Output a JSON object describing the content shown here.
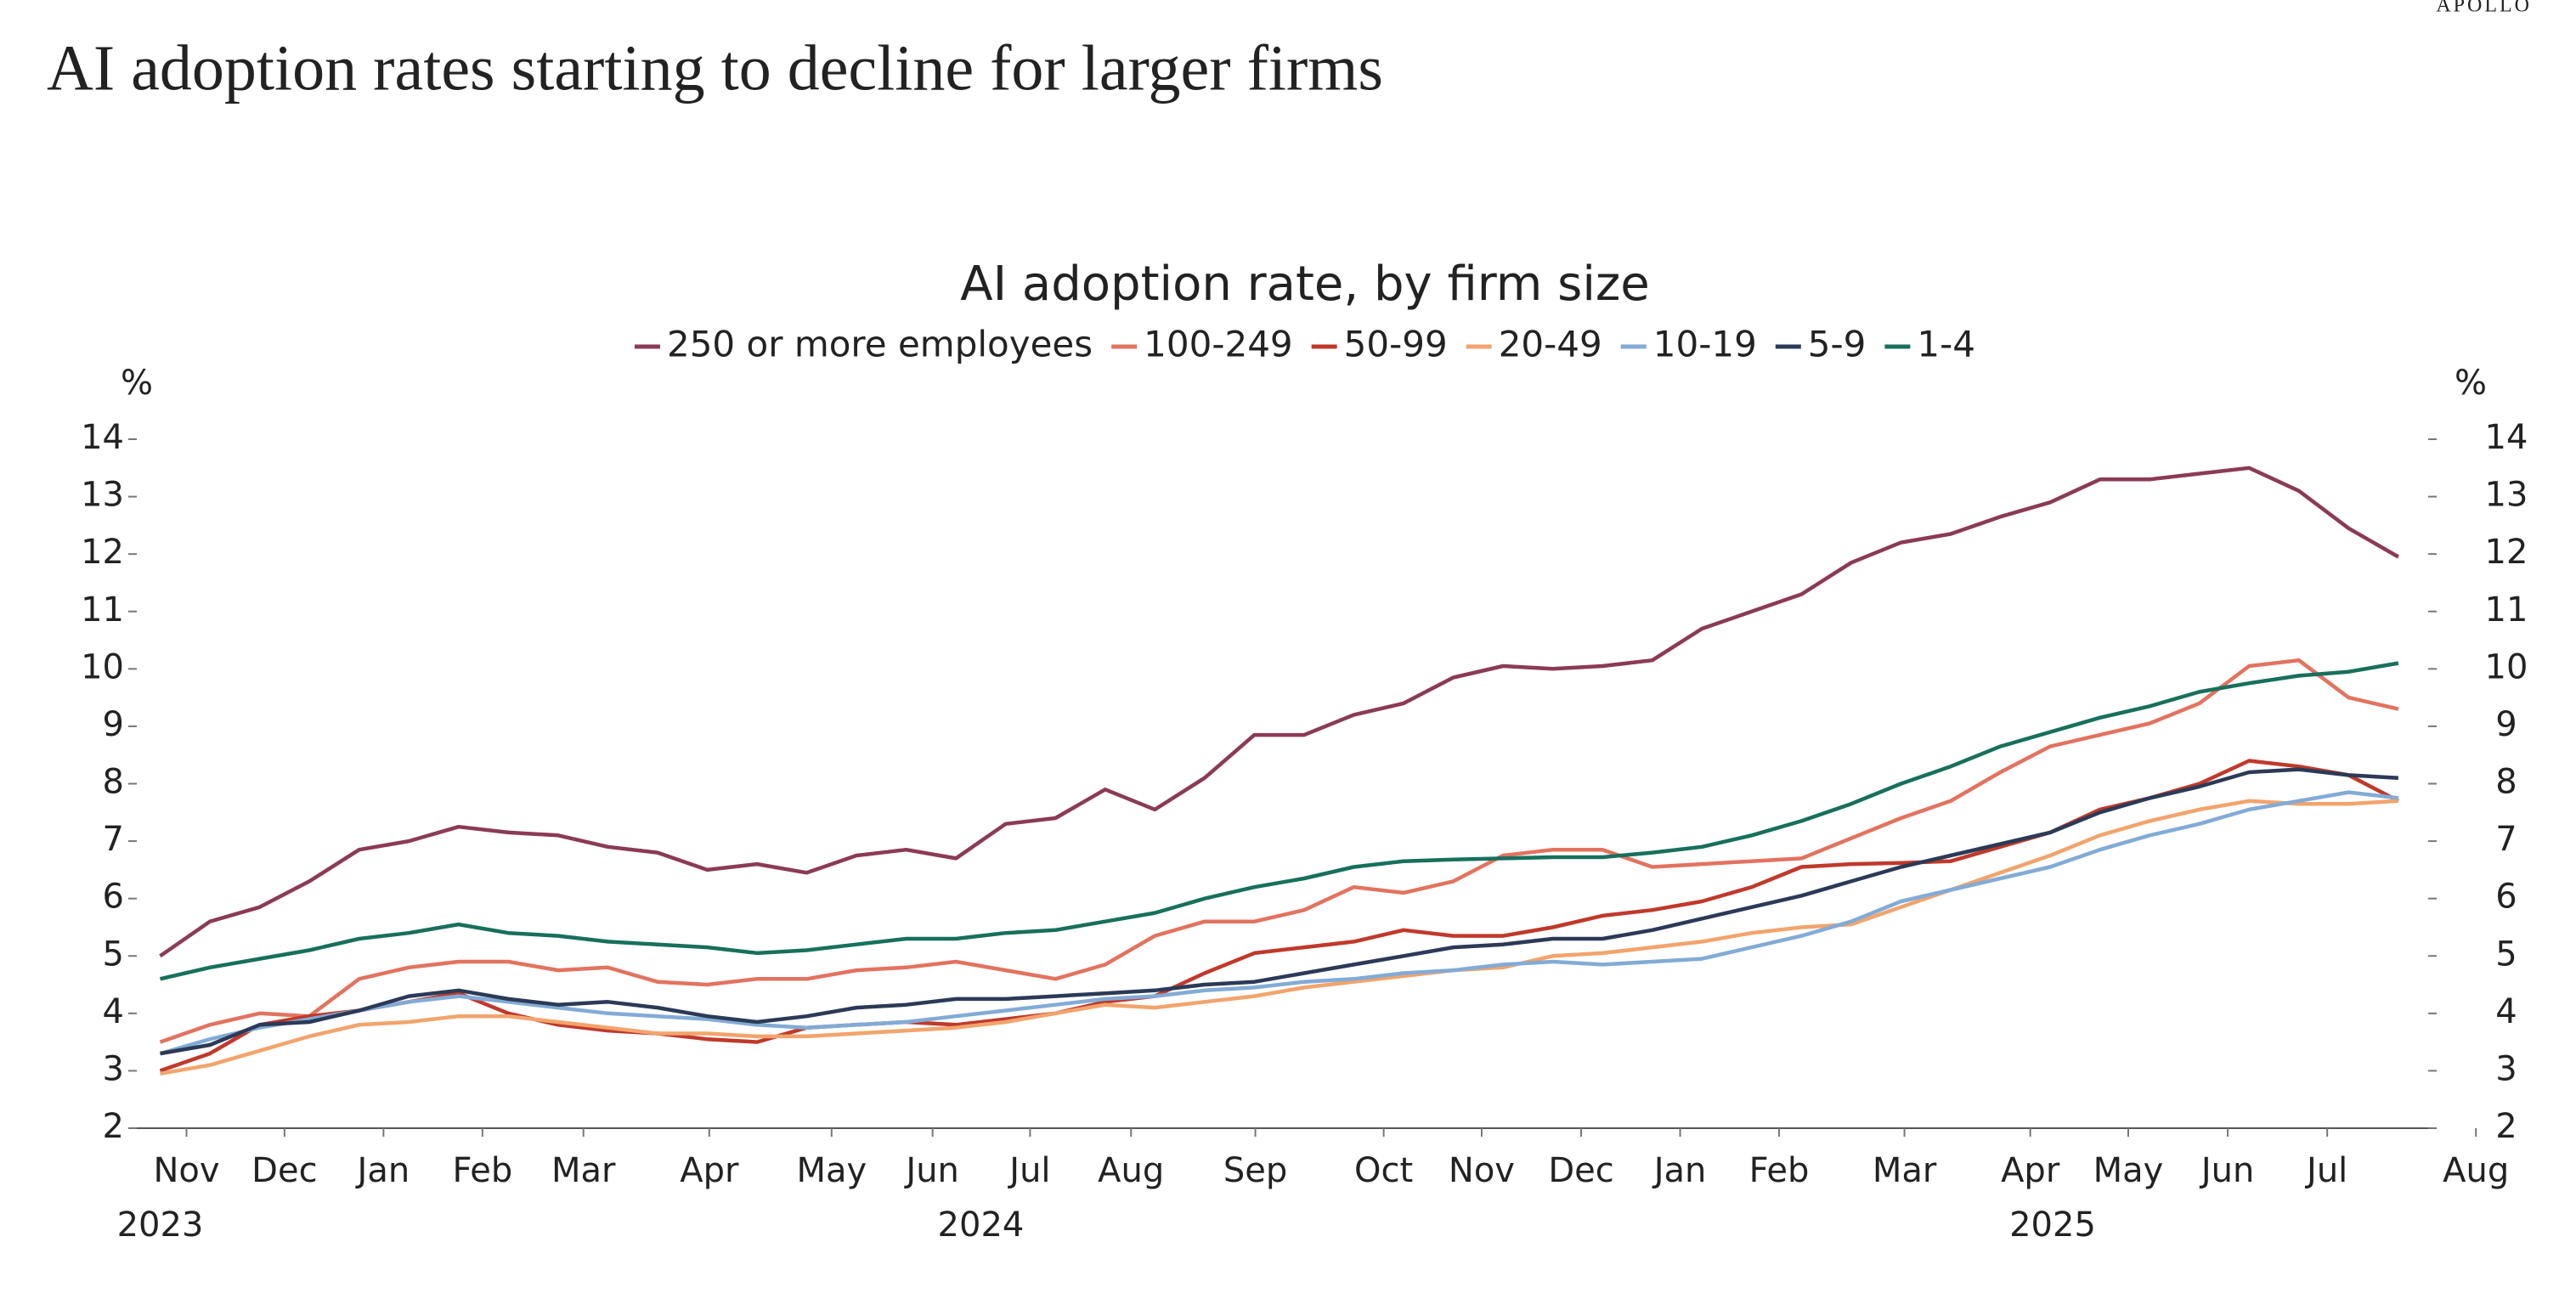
{
  "brand": "APOLLO",
  "headline": "AI adoption rates starting to decline for larger firms",
  "chart_data": {
    "type": "line",
    "title": "AI adoption rate, by firm size",
    "y_unit": "%",
    "y2_unit": "%",
    "ylim": [
      2,
      14
    ],
    "yticks": [
      2,
      3,
      4,
      5,
      6,
      7,
      8,
      9,
      10,
      11,
      12,
      13,
      14
    ],
    "y2lim": [
      2,
      14
    ],
    "y2ticks": [
      2,
      3,
      4,
      5,
      6,
      7,
      8,
      9,
      10,
      11,
      12,
      13,
      14
    ],
    "xlim": [
      -0.47,
      45.6
    ],
    "xticks": [
      {
        "value": 0.53,
        "label": "Nov"
      },
      {
        "value": 2.5,
        "label": "Dec"
      },
      {
        "value": 4.49,
        "label": "Jan"
      },
      {
        "value": 6.48,
        "label": "Feb"
      },
      {
        "value": 8.51,
        "label": "Mar"
      },
      {
        "value": 11.04,
        "label": "Apr"
      },
      {
        "value": 13.5,
        "label": "May"
      },
      {
        "value": 15.53,
        "label": "Jun"
      },
      {
        "value": 17.49,
        "label": "Jul"
      },
      {
        "value": 19.52,
        "label": "Aug"
      },
      {
        "value": 22.02,
        "label": "Sep"
      },
      {
        "value": 24.6,
        "label": "Oct"
      },
      {
        "value": 26.57,
        "label": "Nov"
      },
      {
        "value": 28.57,
        "label": "Dec"
      },
      {
        "value": 30.56,
        "label": "Jan"
      },
      {
        "value": 32.55,
        "label": "Feb"
      },
      {
        "value": 35.07,
        "label": "Mar"
      },
      {
        "value": 37.6,
        "label": "Apr"
      },
      {
        "value": 39.57,
        "label": "May"
      },
      {
        "value": 41.57,
        "label": "Jun"
      },
      {
        "value": 43.57,
        "label": "Jul"
      },
      {
        "value": 46.56,
        "label": "Aug"
      }
    ],
    "year_labels": [
      {
        "value": 0,
        "label": "2023"
      },
      {
        "value": 16.5,
        "label": "2024"
      },
      {
        "value": 38.05,
        "label": "2025"
      }
    ],
    "series": [
      {
        "name": "250 or more employees",
        "color": "#8b3a57",
        "values": [
          5.0,
          5.6,
          5.85,
          6.3,
          6.85,
          7.0,
          7.25,
          7.15,
          7.1,
          6.9,
          6.8,
          6.5,
          6.6,
          6.45,
          6.75,
          6.85,
          6.7,
          7.3,
          7.4,
          7.9,
          7.55,
          8.1,
          8.85,
          8.85,
          9.2,
          9.4,
          9.85,
          10.05,
          10.0,
          10.05,
          10.15,
          10.7,
          11.0,
          11.3,
          11.85,
          12.2,
          12.35,
          12.65,
          12.9,
          13.3,
          13.3,
          13.4,
          13.5,
          13.1,
          12.45,
          11.95
        ]
      },
      {
        "name": "100-249",
        "color": "#e2735f",
        "values": [
          3.5,
          3.8,
          4.0,
          3.95,
          4.6,
          4.8,
          4.9,
          4.9,
          4.75,
          4.8,
          4.55,
          4.5,
          4.6,
          4.6,
          4.75,
          4.8,
          4.9,
          4.75,
          4.6,
          4.85,
          5.35,
          5.6,
          5.6,
          5.8,
          6.2,
          6.1,
          6.3,
          6.75,
          6.85,
          6.85,
          6.55,
          6.6,
          6.65,
          6.7,
          7.05,
          7.4,
          7.7,
          8.2,
          8.65,
          8.85,
          9.05,
          9.4,
          10.05,
          10.15,
          9.5,
          9.3
        ]
      },
      {
        "name": "50-99",
        "color": "#c0392b",
        "values": [
          3.0,
          3.3,
          3.8,
          3.95,
          4.05,
          4.2,
          4.35,
          4.0,
          3.8,
          3.7,
          3.65,
          3.55,
          3.5,
          3.75,
          3.8,
          3.85,
          3.8,
          3.9,
          4.0,
          4.2,
          4.3,
          4.7,
          5.05,
          5.15,
          5.25,
          5.45,
          5.35,
          5.35,
          5.5,
          5.7,
          5.8,
          5.95,
          6.2,
          6.55,
          6.6,
          6.62,
          6.65,
          6.9,
          7.15,
          7.55,
          7.75,
          8.0,
          8.4,
          8.3,
          8.15,
          7.7
        ]
      },
      {
        "name": "20-49",
        "color": "#f2a46c",
        "values": [
          2.95,
          3.1,
          3.35,
          3.6,
          3.8,
          3.85,
          3.95,
          3.95,
          3.85,
          3.75,
          3.65,
          3.65,
          3.6,
          3.6,
          3.65,
          3.7,
          3.75,
          3.85,
          4.0,
          4.15,
          4.1,
          4.2,
          4.3,
          4.45,
          4.55,
          4.65,
          4.75,
          4.8,
          5.0,
          5.05,
          5.15,
          5.25,
          5.4,
          5.5,
          5.55,
          5.85,
          6.15,
          6.45,
          6.75,
          7.1,
          7.35,
          7.55,
          7.7,
          7.65,
          7.65,
          7.7
        ]
      },
      {
        "name": "10-19",
        "color": "#82abd6",
        "values": [
          3.3,
          3.55,
          3.75,
          3.9,
          4.05,
          4.2,
          4.3,
          4.2,
          4.1,
          4.0,
          3.95,
          3.9,
          3.8,
          3.75,
          3.8,
          3.85,
          3.95,
          4.05,
          4.15,
          4.25,
          4.3,
          4.4,
          4.45,
          4.55,
          4.6,
          4.7,
          4.75,
          4.85,
          4.9,
          4.85,
          4.9,
          4.95,
          5.15,
          5.35,
          5.6,
          5.95,
          6.15,
          6.35,
          6.55,
          6.85,
          7.1,
          7.3,
          7.55,
          7.7,
          7.85,
          7.75
        ]
      },
      {
        "name": "5-9",
        "color": "#2b3a57",
        "values": [
          3.3,
          3.45,
          3.8,
          3.85,
          4.05,
          4.3,
          4.4,
          4.25,
          4.15,
          4.2,
          4.1,
          3.95,
          3.85,
          3.95,
          4.1,
          4.15,
          4.25,
          4.25,
          4.3,
          4.35,
          4.4,
          4.5,
          4.55,
          4.7,
          4.85,
          5.0,
          5.15,
          5.2,
          5.3,
          5.3,
          5.45,
          5.65,
          5.85,
          6.05,
          6.3,
          6.55,
          6.75,
          6.95,
          7.15,
          7.5,
          7.75,
          7.95,
          8.2,
          8.25,
          8.15,
          8.1
        ]
      },
      {
        "name": "1-4",
        "color": "#17705c",
        "values": [
          4.6,
          4.8,
          4.95,
          5.1,
          5.3,
          5.4,
          5.55,
          5.4,
          5.35,
          5.25,
          5.2,
          5.15,
          5.05,
          5.1,
          5.2,
          5.3,
          5.3,
          5.4,
          5.45,
          5.6,
          5.75,
          6.0,
          6.2,
          6.35,
          6.55,
          6.65,
          6.68,
          6.7,
          6.72,
          6.72,
          6.8,
          6.9,
          7.1,
          7.35,
          7.65,
          8.0,
          8.3,
          8.65,
          8.9,
          9.15,
          9.35,
          9.6,
          9.75,
          9.88,
          9.95,
          10.1
        ]
      }
    ]
  }
}
